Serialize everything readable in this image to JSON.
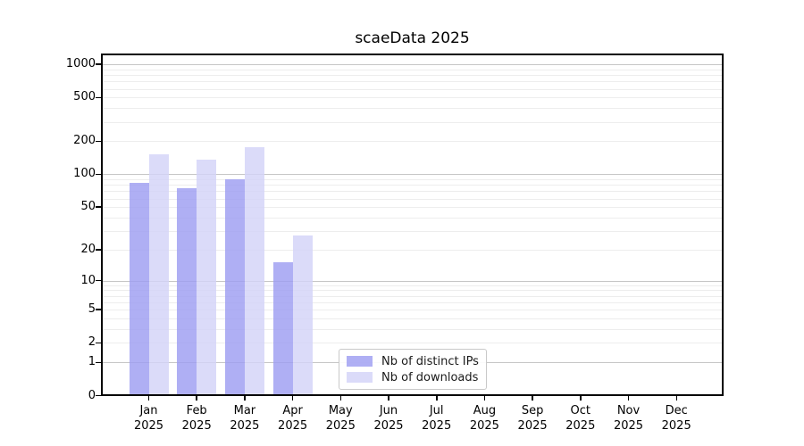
{
  "chart_data": {
    "type": "bar",
    "title": "scaeData 2025",
    "categories": [
      "Jan",
      "Feb",
      "Mar",
      "Apr",
      "May",
      "Jun",
      "Jul",
      "Aug",
      "Sep",
      "Oct",
      "Nov",
      "Dec"
    ],
    "year": "2025",
    "series": [
      {
        "name": "Nb of distinct IPs",
        "color": "#9d9df1",
        "values": [
          84,
          74,
          90,
          15,
          0,
          0,
          0,
          0,
          0,
          0,
          0,
          0
        ]
      },
      {
        "name": "Nb of downloads",
        "color": "#d3d3f8",
        "values": [
          151,
          136,
          176,
          27,
          0,
          0,
          0,
          0,
          0,
          0,
          0,
          0
        ]
      }
    ],
    "yscale": "log1p",
    "yticks": [
      0,
      1,
      2,
      5,
      10,
      20,
      50,
      100,
      200,
      500,
      1000
    ],
    "ylim": [
      0,
      1250
    ],
    "grid": "horizontal",
    "legend_position": "lower center",
    "colors": {
      "major_grid": "#c6c6c6",
      "minor_grid": "#ededed",
      "spine": "#000000"
    }
  }
}
